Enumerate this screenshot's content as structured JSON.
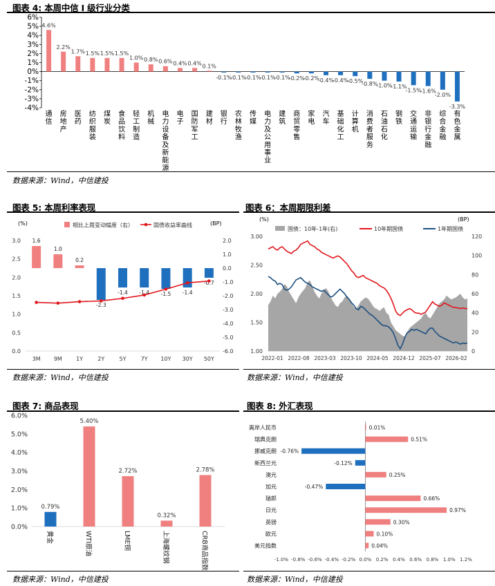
{
  "source_label": "数据来源：Wind，中信建投",
  "colors": {
    "pink": "#f08080",
    "blue": "#1f6fbf",
    "red": "#e0151b",
    "navy": "#1c4f80",
    "gray": "#a6a6a6"
  },
  "chart4": {
    "title": "图表 4: 本周中信 I 级行业分类",
    "chart_data": {
      "type": "bar",
      "categories": [
        "通信",
        "房地产",
        "医药",
        "纺织服装",
        "煤炭",
        "食品饮料",
        "轻工制造",
        "机械",
        "电力设备及新能源",
        "电子",
        "国防军工",
        "建材",
        "银行",
        "农林牧渔",
        "传媒",
        "电力及公用事业",
        "建筑",
        "商贸零售",
        "家电",
        "汽车",
        "基础化工",
        "计算机",
        "消费者服务",
        "石油石化",
        "钢铁",
        "交通运输",
        "非银行金融",
        "综合金融",
        "有色金属"
      ],
      "values": [
        4.6,
        2.2,
        1.7,
        1.5,
        1.5,
        1.5,
        1.0,
        0.8,
        0.6,
        0.4,
        0.4,
        0.1,
        -0.1,
        -0.1,
        -0.1,
        -0.1,
        -0.1,
        -0.2,
        -0.2,
        -0.4,
        -0.4,
        -0.5,
        -0.8,
        -1.0,
        -1.1,
        -1.5,
        -1.6,
        -2.0,
        -3.3
      ],
      "labels": [
        "4.6%",
        "2.2%",
        "1.7%",
        "1.5%",
        "1.5%",
        "1.5%",
        "1.0%",
        "0.8%",
        "0.6%",
        "0.4%",
        "0.4%",
        "0.1%",
        "-0.1%",
        "-0.1%",
        "-0.1%",
        "-0.1%",
        "-0.1%",
        "-0.2%",
        "-0.2%",
        "-0.4%",
        "-0.4%",
        "-0.5%",
        "-0.8%",
        "-1.0%",
        "-1.1%",
        "-1.5%",
        "-1.6%",
        "-2.0%",
        "-3.3%"
      ],
      "ylim": [
        -4,
        6
      ],
      "yticks": [
        "-4%",
        "-3%",
        "-2%",
        "-1%",
        "0%",
        "1%",
        "2%",
        "3%",
        "4%",
        "5%",
        "6%"
      ],
      "grid": false
    }
  },
  "chart5": {
    "title": "图表 5: 本周利率表现",
    "chart_data": {
      "type": "bar+line",
      "categories": [
        "3M",
        "9M",
        "1Y",
        "2Y",
        "5Y",
        "7Y",
        "10Y",
        "30Y",
        "50Y"
      ],
      "series": [
        {
          "name": "相比上周变动幅度（右）",
          "type": "bar",
          "values": [
            1.6,
            1.0,
            0.2,
            -2.3,
            -1.4,
            -1.4,
            -1.5,
            -1.4,
            -0.7
          ],
          "labels": [
            "1.6",
            "1.0",
            "0.2",
            "-2.3",
            "-1.4",
            "-1.4",
            "-1.5",
            "-1.4",
            "-0.7"
          ]
        },
        {
          "name": "国债收益率曲线",
          "type": "line",
          "values": [
            1.32,
            1.3,
            1.34,
            1.36,
            1.43,
            1.52,
            1.68,
            1.85,
            1.9
          ]
        }
      ],
      "left_unit": "(%)",
      "right_unit": "(BP)",
      "left_ylim": [
        0,
        3.0
      ],
      "right_ylim": [
        -6.0,
        2.0
      ],
      "left_ticks": [
        "0.0",
        "0.5",
        "1.0",
        "1.5",
        "2.0",
        "2.5",
        "3.0"
      ],
      "right_ticks": [
        "-6.0",
        "-5.0",
        "-4.0",
        "-3.0",
        "-2.0",
        "-1.0",
        "0.0",
        "1.0",
        "2.0"
      ]
    }
  },
  "chart6": {
    "title": "图表 6：本周期限利差",
    "chart_data": {
      "type": "line+area",
      "left_unit": "(%)",
      "right_unit": "(BP)",
      "left_ylim": [
        1.0,
        3.0
      ],
      "right_ylim": [
        0,
        120
      ],
      "left_ticks": [
        "1.00",
        "1.50",
        "2.00",
        "2.50",
        "3.00"
      ],
      "right_ticks": [
        "0",
        "20",
        "40",
        "60",
        "80",
        "100",
        "120"
      ],
      "x_ticks": [
        "2022-01",
        "2022-08",
        "2023-03",
        "2023-10",
        "2024-05",
        "2024-12",
        "2025-07",
        "2026-02"
      ],
      "series": [
        {
          "name": "国债：10年-1年(右)",
          "type": "area",
          "axis": "right",
          "values": [
            48,
            52,
            58,
            55,
            60,
            62,
            65,
            70,
            68,
            62,
            58,
            54,
            50,
            56,
            60,
            63,
            66,
            72,
            74,
            68,
            62,
            58,
            55,
            60,
            64,
            66,
            62,
            56,
            52,
            48,
            46,
            50,
            52,
            56,
            58,
            55,
            50,
            46,
            44,
            48,
            52,
            54,
            56,
            55,
            52,
            48,
            45,
            44,
            42,
            44,
            46,
            40,
            38,
            30,
            26,
            22,
            20,
            18,
            16,
            15,
            20,
            24,
            26,
            28,
            30,
            32,
            34,
            38,
            40,
            36,
            34,
            38,
            42,
            46,
            50,
            52,
            54,
            58,
            56,
            54,
            55,
            56,
            58,
            60,
            56,
            54,
            55
          ]
        },
        {
          "name": "10年期国债",
          "type": "line",
          "axis": "left",
          "values": [
            2.78,
            2.8,
            2.82,
            2.78,
            2.76,
            2.8,
            2.82,
            2.78,
            2.74,
            2.72,
            2.7,
            2.74,
            2.76,
            2.8,
            2.86,
            2.88,
            2.9,
            2.92,
            2.86,
            2.84,
            2.82,
            2.78,
            2.76,
            2.72,
            2.7,
            2.68,
            2.66,
            2.64,
            2.62,
            2.64,
            2.66,
            2.64,
            2.6,
            2.56,
            2.52,
            2.46,
            2.4,
            2.36,
            2.3,
            2.28,
            2.3,
            2.32,
            2.28,
            2.26,
            2.24,
            2.22,
            2.2,
            2.18,
            2.14,
            2.12,
            2.1,
            2.06,
            2.0,
            1.92,
            1.82,
            1.7,
            1.64,
            1.62,
            1.66,
            1.7,
            1.72,
            1.74,
            1.72,
            1.68,
            1.66,
            1.66,
            1.64,
            1.66,
            1.68,
            1.74,
            1.8,
            1.86,
            1.82,
            1.8,
            1.78,
            1.8,
            1.84,
            1.82,
            1.8,
            1.78,
            1.76,
            1.76,
            1.75,
            1.74,
            1.75,
            1.74,
            1.74
          ]
        },
        {
          "name": "1年期国债",
          "type": "line",
          "axis": "left",
          "values": [
            2.3,
            2.28,
            2.24,
            2.22,
            2.16,
            2.18,
            2.16,
            2.08,
            2.06,
            2.08,
            2.12,
            2.18,
            2.24,
            2.26,
            2.28,
            2.24,
            2.2,
            2.18,
            2.16,
            2.12,
            2.1,
            2.08,
            2.06,
            2.04,
            2.06,
            2.02,
            1.98,
            1.94,
            1.96,
            2.0,
            2.04,
            2.08,
            2.04,
            2.0,
            1.94,
            1.9,
            1.84,
            1.8,
            1.74,
            1.72,
            1.78,
            1.76,
            1.72,
            1.68,
            1.64,
            1.62,
            1.58,
            1.54,
            1.5,
            1.46,
            1.44,
            1.44,
            1.42,
            1.38,
            1.32,
            1.22,
            1.1,
            1.04,
            1.12,
            1.24,
            1.32,
            1.34,
            1.38,
            1.36,
            1.38,
            1.36,
            1.34,
            1.32,
            1.3,
            1.36,
            1.4,
            1.4,
            1.34,
            1.3,
            1.26,
            1.24,
            1.22,
            1.2,
            1.18,
            1.16,
            1.14,
            1.16,
            1.14,
            1.12,
            1.14,
            1.13,
            1.14
          ]
        }
      ],
      "grid": false
    }
  },
  "chart7": {
    "title": "图表 7: 商品表现",
    "chart_data": {
      "type": "bar",
      "categories": [
        "黄金",
        "WTI原油",
        "LME铜",
        "上海螺纹钢",
        "CRB商品指数"
      ],
      "values": [
        0.79,
        5.4,
        2.72,
        0.32,
        2.78
      ],
      "labels": [
        "0.79%",
        "5.40%",
        "2.72%",
        "0.32%",
        "2.78%"
      ],
      "bar_colors": [
        "blue",
        "pink",
        "pink",
        "pink",
        "pink"
      ],
      "ylim": [
        0,
        6
      ],
      "yticks": [
        "0.0%",
        "1.0%",
        "2.0%",
        "3.0%",
        "4.0%",
        "5.0%",
        "6.0%"
      ]
    }
  },
  "chart8": {
    "title": "图表 8: 外汇表现",
    "chart_data": {
      "type": "bar",
      "orientation": "horizontal",
      "categories": [
        "离岸人民币",
        "瑞典克朗",
        "挪威克朗",
        "新西兰元",
        "澳元",
        "加元",
        "瑞郎",
        "日元",
        "英镑",
        "欧元",
        "美元指数"
      ],
      "values": [
        0.01,
        0.51,
        -0.76,
        -0.12,
        0.25,
        -0.47,
        0.66,
        0.97,
        0.3,
        0.1,
        0.04
      ],
      "labels": [
        "0.01%",
        "0.51%",
        "-0.76%",
        "-0.12%",
        "0.25%",
        "-0.47%",
        "0.66%",
        "0.97%",
        "0.30%",
        "0.10%",
        "0.04%"
      ],
      "xlim": [
        -1.0,
        1.2
      ],
      "xticks": [
        "-1.0%",
        "-0.8%",
        "-0.6%",
        "-0.4%",
        "-0.2%",
        "0.0%",
        "0.2%",
        "0.4%",
        "0.6%",
        "0.8%",
        "1.0%",
        "1.2%"
      ]
    }
  }
}
